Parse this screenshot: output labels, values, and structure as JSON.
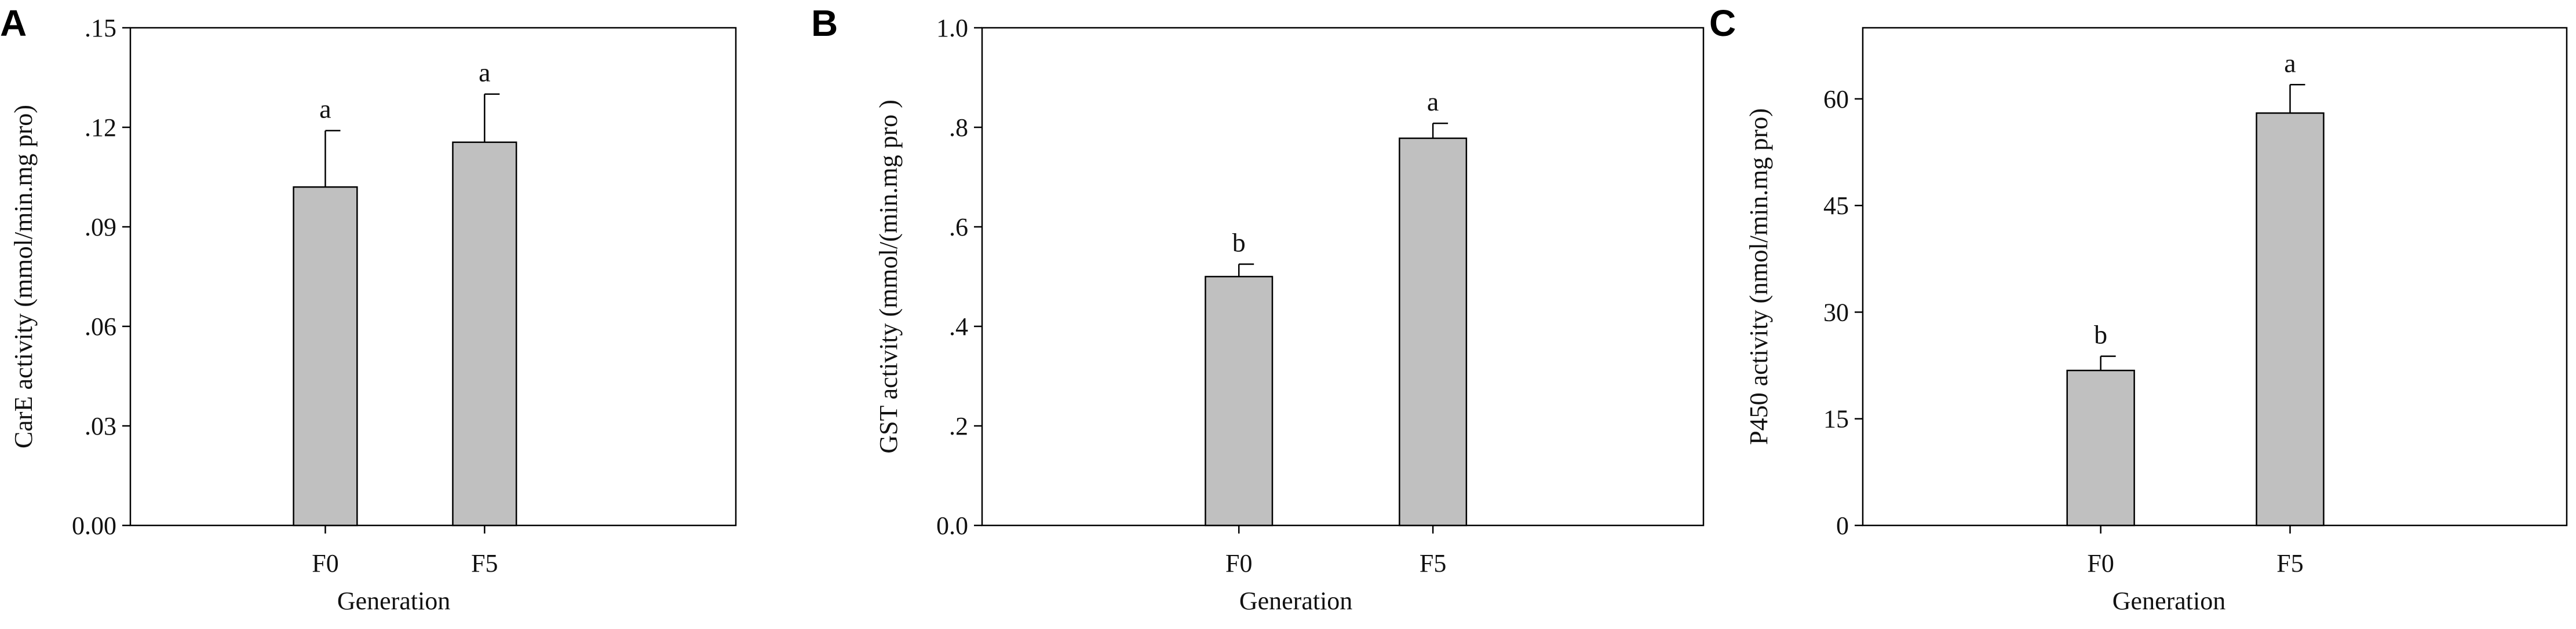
{
  "colors": {
    "bar_fill": "#c0c0c0",
    "stroke": "#000000",
    "background": "#ffffff"
  },
  "chart_data": [
    {
      "type": "bar",
      "panel": "A",
      "categories": [
        "F0",
        "F5"
      ],
      "values": [
        0.102,
        0.1155
      ],
      "errors": [
        0.017,
        0.0145
      ],
      "significance": [
        "a",
        "a"
      ],
      "xlabel": "Generation",
      "ylabel": "CarE activity (mmol/min.mg pro)",
      "ylim": [
        0,
        0.15
      ],
      "yticks": [
        0,
        0.03,
        0.06,
        0.09,
        0.12,
        0.15
      ],
      "ytick_labels": [
        "0.00",
        ".03",
        ".06",
        ".09",
        ".12",
        ".15"
      ],
      "grid": false,
      "legend": "none"
    },
    {
      "type": "bar",
      "panel": "B",
      "categories": [
        "F0",
        "F5"
      ],
      "values": [
        0.5,
        0.778
      ],
      "errors": [
        0.025,
        0.03
      ],
      "significance": [
        "b",
        "a"
      ],
      "xlabel": "Generation",
      "ylabel": "GST activity (mmol/(min.mg pro )",
      "ylim": [
        0,
        1.0
      ],
      "yticks": [
        0,
        0.2,
        0.4,
        0.6,
        0.8,
        1.0
      ],
      "ytick_labels": [
        "0.0",
        ".2",
        ".4",
        ".6",
        ".8",
        "1.0"
      ],
      "grid": false,
      "legend": "none"
    },
    {
      "type": "bar",
      "panel": "C",
      "categories": [
        "F0",
        "F5"
      ],
      "values": [
        21.8,
        58.0
      ],
      "errors": [
        2.0,
        4.0
      ],
      "significance": [
        "b",
        "a"
      ],
      "xlabel": "Generation",
      "ylabel": "P450 activity (nmol/min.mg pro)",
      "ylim": [
        0,
        70
      ],
      "yticks": [
        0,
        15,
        30,
        45,
        60
      ],
      "ytick_labels": [
        "0",
        "15",
        "30",
        "45",
        "60"
      ],
      "grid": false,
      "legend": "none"
    }
  ]
}
